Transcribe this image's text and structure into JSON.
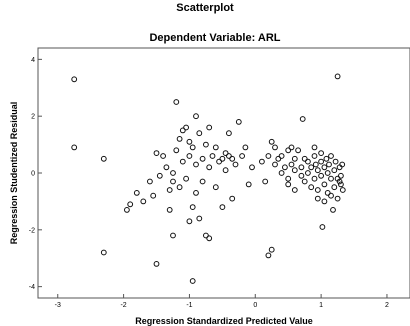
{
  "chart_data": {
    "type": "scatter",
    "title": "Scatterplot",
    "subtitle": "Dependent Variable: ARL",
    "xlabel": "Regression Standardized Predicted Value",
    "ylabel": "Regression Studentized Residual",
    "xlim": [
      -3.3,
      2.35
    ],
    "ylim": [
      -4.4,
      4.4
    ],
    "xticks": [
      -3,
      -2,
      -1,
      0,
      1,
      2
    ],
    "yticks": [
      -4,
      -2,
      0,
      2,
      4
    ],
    "grid": false,
    "points": [
      [
        -2.75,
        3.3
      ],
      [
        -2.75,
        0.9
      ],
      [
        -2.3,
        0.5
      ],
      [
        -2.3,
        -2.8
      ],
      [
        -1.95,
        -1.3
      ],
      [
        -1.9,
        -1.1
      ],
      [
        -1.8,
        -0.7
      ],
      [
        -1.7,
        -1.0
      ],
      [
        -1.6,
        -0.3
      ],
      [
        -1.55,
        -0.8
      ],
      [
        -1.5,
        0.7
      ],
      [
        -1.5,
        -3.2
      ],
      [
        -1.45,
        -0.1
      ],
      [
        -1.4,
        0.6
      ],
      [
        -1.35,
        0.2
      ],
      [
        -1.3,
        -0.6
      ],
      [
        -1.3,
        -1.3
      ],
      [
        -1.25,
        -2.2
      ],
      [
        -1.25,
        0.0
      ],
      [
        -1.2,
        0.8
      ],
      [
        -1.15,
        1.2
      ],
      [
        -1.15,
        -0.5
      ],
      [
        -1.1,
        0.4
      ],
      [
        -1.1,
        1.5
      ],
      [
        -1.05,
        1.6
      ],
      [
        -1.05,
        -0.2
      ],
      [
        -1.0,
        0.6
      ],
      [
        -1.0,
        1.1
      ],
      [
        -0.95,
        0.9
      ],
      [
        -0.95,
        -1.2
      ],
      [
        -0.9,
        -0.7
      ],
      [
        -0.9,
        0.3
      ],
      [
        -0.85,
        1.4
      ],
      [
        -0.85,
        -1.6
      ],
      [
        -0.8,
        0.5
      ],
      [
        -0.8,
        -0.3
      ],
      [
        -0.75,
        1.0
      ],
      [
        -0.75,
        -2.2
      ],
      [
        -0.7,
        1.6
      ],
      [
        -0.7,
        0.2
      ],
      [
        -0.65,
        0.6
      ],
      [
        -0.6,
        0.9
      ],
      [
        -0.6,
        -0.5
      ],
      [
        -0.55,
        0.4
      ],
      [
        -0.5,
        0.5
      ],
      [
        -0.5,
        -1.2
      ],
      [
        -0.45,
        0.7
      ],
      [
        -0.45,
        0.1
      ],
      [
        -0.4,
        0.6
      ],
      [
        -0.4,
        1.4
      ],
      [
        -0.35,
        0.5
      ],
      [
        -0.35,
        -0.9
      ],
      [
        -0.3,
        0.3
      ],
      [
        -0.25,
        1.8
      ],
      [
        -0.2,
        0.6
      ],
      [
        -0.15,
        0.9
      ],
      [
        -0.1,
        -0.4
      ],
      [
        -0.05,
        0.2
      ],
      [
        -1.2,
        2.5
      ],
      [
        -0.9,
        2.0
      ],
      [
        -1.25,
        -0.3
      ],
      [
        -1.0,
        -1.7
      ],
      [
        -0.95,
        -3.8
      ],
      [
        -0.7,
        -2.3
      ],
      [
        0.1,
        0.4
      ],
      [
        0.15,
        -0.3
      ],
      [
        0.2,
        0.6
      ],
      [
        0.2,
        -2.9
      ],
      [
        0.25,
        1.1
      ],
      [
        0.25,
        -2.7
      ],
      [
        0.3,
        0.3
      ],
      [
        0.3,
        0.9
      ],
      [
        0.35,
        0.5
      ],
      [
        0.4,
        0.0
      ],
      [
        0.4,
        0.6
      ],
      [
        0.45,
        0.2
      ],
      [
        0.5,
        0.8
      ],
      [
        0.5,
        -0.4
      ],
      [
        0.55,
        0.3
      ],
      [
        0.6,
        0.1
      ],
      [
        0.6,
        0.5
      ],
      [
        0.65,
        0.8
      ],
      [
        0.7,
        0.2
      ],
      [
        0.7,
        -0.1
      ],
      [
        0.72,
        1.9
      ],
      [
        0.75,
        0.5
      ],
      [
        0.75,
        -0.3
      ],
      [
        0.8,
        0.0
      ],
      [
        0.8,
        0.4
      ],
      [
        0.85,
        -0.5
      ],
      [
        0.85,
        0.2
      ],
      [
        0.9,
        0.6
      ],
      [
        0.9,
        -0.2
      ],
      [
        0.92,
        0.3
      ],
      [
        0.95,
        0.1
      ],
      [
        0.95,
        -0.6
      ],
      [
        1.0,
        0.4
      ],
      [
        1.0,
        -0.1
      ],
      [
        1.0,
        0.7
      ],
      [
        1.02,
        -1.9
      ],
      [
        1.05,
        0.2
      ],
      [
        1.05,
        -0.4
      ],
      [
        1.08,
        0.5
      ],
      [
        1.1,
        0.0
      ],
      [
        1.1,
        -0.7
      ],
      [
        1.12,
        0.3
      ],
      [
        1.15,
        -0.2
      ],
      [
        1.15,
        0.6
      ],
      [
        1.18,
        -1.3
      ],
      [
        1.2,
        0.1
      ],
      [
        1.2,
        -0.5
      ],
      [
        1.22,
        0.4
      ],
      [
        1.25,
        -0.2
      ],
      [
        1.25,
        -0.9
      ],
      [
        1.28,
        0.2
      ],
      [
        1.3,
        -0.4
      ],
      [
        1.3,
        -0.1
      ],
      [
        1.32,
        0.3
      ],
      [
        1.33,
        -0.6
      ],
      [
        1.25,
        3.4
      ],
      [
        0.9,
        0.9
      ],
      [
        0.95,
        -0.9
      ],
      [
        1.05,
        -1.0
      ],
      [
        0.6,
        -0.6
      ],
      [
        0.5,
        -0.2
      ],
      [
        0.55,
        0.9
      ],
      [
        1.15,
        -0.8
      ],
      [
        1.28,
        -0.3
      ]
    ]
  }
}
